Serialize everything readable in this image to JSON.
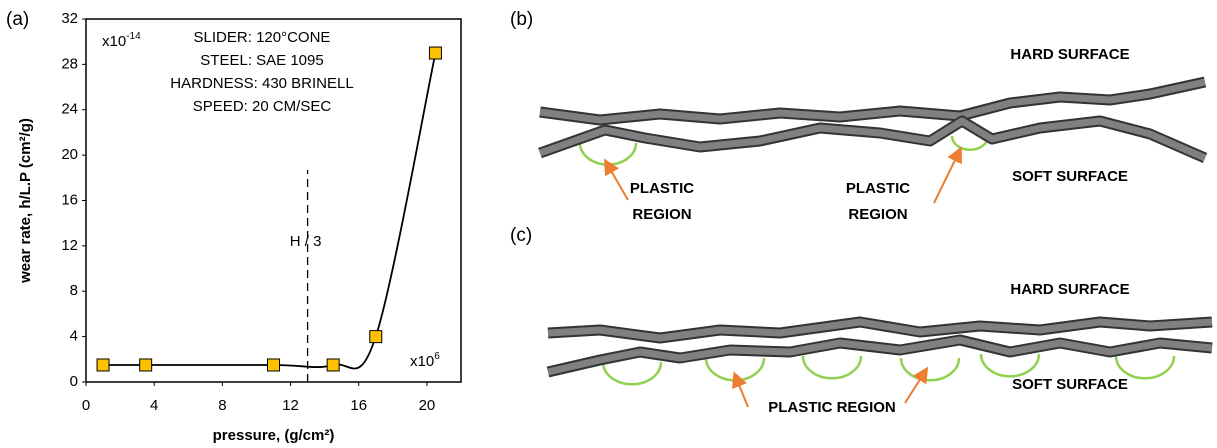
{
  "chart_data": {
    "type": "scatter",
    "panel_label": "(a)",
    "xlabel": "pressure, (g/cm²)",
    "ylabel": "wear rate, h/L.P (cm²/g)",
    "xlim": [
      0,
      22
    ],
    "ylim": [
      0,
      32
    ],
    "xticks": [
      0,
      4,
      8,
      12,
      16,
      20
    ],
    "yticks": [
      0,
      4,
      8,
      12,
      16,
      20,
      24,
      28,
      32
    ],
    "x": [
      1,
      3.5,
      11,
      14.5,
      17,
      20.5
    ],
    "values": [
      1.5,
      1.5,
      1.5,
      1.5,
      4,
      29
    ],
    "color": "#ffc000",
    "line_color": "#000000",
    "smooth": true,
    "x_multiplier": {
      "base": "x10",
      "exp": "6"
    },
    "y_multiplier": {
      "base": "x10",
      "exp": "-14"
    },
    "annotations": [
      "SLIDER: 120°CONE",
      "STEEL: SAE 1095",
      "HARDNESS: 430 BRINELL",
      "SPEED: 20 CM/SEC"
    ],
    "vline": {
      "x": 13,
      "label": "H / 3"
    }
  },
  "diagrams": [
    {
      "label": "(b)",
      "hard": "HARD SURFACE",
      "soft": "SOFT SURFACE",
      "plastic": [
        [
          "PLASTIC",
          "REGION"
        ],
        [
          "PLASTIC",
          "REGION"
        ]
      ]
    },
    {
      "label": "(c)",
      "hard": "HARD SURFACE",
      "soft": "SOFT SURFACE",
      "plastic": "PLASTIC REGION"
    }
  ]
}
